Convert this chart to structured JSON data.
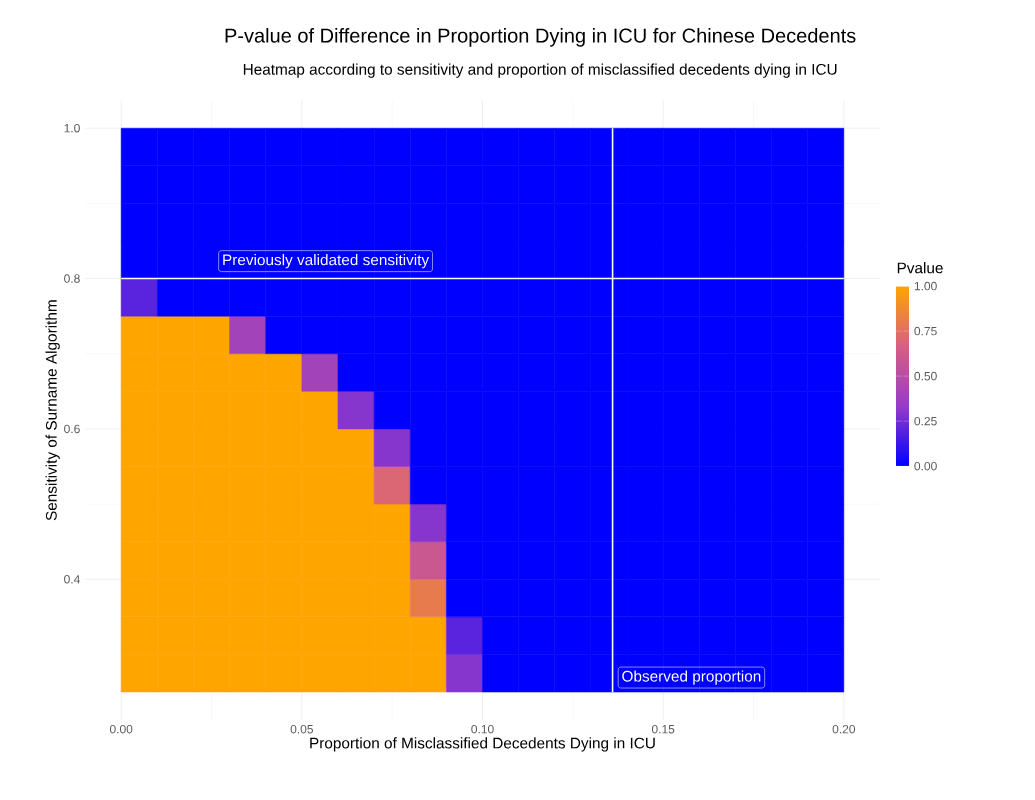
{
  "chart_data": {
    "type": "heatmap",
    "title": "P-value of Difference in Proportion Dying in ICU for Chinese Decedents",
    "subtitle": "Heatmap according to sensitivity and proportion of misclassified decedents dying in ICU",
    "xlabel": "Proportion of Misclassified Decedents Dying in ICU",
    "ylabel": "Sensitivity of Surname Algorithm",
    "clabel": "Pvalue",
    "x": [
      0.005,
      0.015,
      0.025,
      0.035,
      0.045,
      0.055,
      0.065,
      0.075,
      0.085,
      0.095,
      0.105,
      0.115,
      0.125,
      0.135,
      0.145,
      0.155,
      0.165,
      0.175,
      0.185,
      0.195
    ],
    "y": [
      0.975,
      0.925,
      0.875,
      0.825,
      0.775,
      0.725,
      0.675,
      0.625,
      0.575,
      0.525,
      0.475,
      0.425,
      0.375,
      0.325,
      0.275
    ],
    "cells": [
      [
        0,
        0,
        0,
        0,
        0,
        0,
        0,
        0,
        0,
        0,
        0,
        0,
        0,
        0,
        0,
        0,
        0,
        0,
        0,
        0
      ],
      [
        0,
        0,
        0,
        0,
        0,
        0,
        0,
        0,
        0,
        0,
        0,
        0,
        0,
        0,
        0,
        0,
        0,
        0,
        0,
        0
      ],
      [
        0,
        0,
        0,
        0,
        0,
        0,
        0,
        0,
        0,
        0,
        0,
        0,
        0,
        0,
        0,
        0,
        0,
        0,
        0,
        0
      ],
      [
        0,
        0,
        0,
        0,
        0,
        0,
        0,
        0,
        0,
        0,
        0,
        0,
        0,
        0,
        0,
        0,
        0,
        0,
        0,
        0
      ],
      [
        0.2,
        0,
        0,
        0,
        0,
        0,
        0,
        0,
        0,
        0,
        0,
        0,
        0,
        0,
        0,
        0,
        0,
        0,
        0,
        0
      ],
      [
        1,
        1,
        1,
        0.4,
        0,
        0,
        0,
        0,
        0,
        0,
        0,
        0,
        0,
        0,
        0,
        0,
        0,
        0,
        0,
        0
      ],
      [
        1,
        1,
        1,
        1,
        1,
        0.4,
        0,
        0,
        0,
        0,
        0,
        0,
        0,
        0,
        0,
        0,
        0,
        0,
        0,
        0
      ],
      [
        1,
        1,
        1,
        1,
        1,
        1,
        0.3,
        0,
        0,
        0,
        0,
        0,
        0,
        0,
        0,
        0,
        0,
        0,
        0,
        0
      ],
      [
        1,
        1,
        1,
        1,
        1,
        1,
        1,
        0.3,
        0,
        0,
        0,
        0,
        0,
        0,
        0,
        0,
        0,
        0,
        0,
        0
      ],
      [
        1,
        1,
        1,
        1,
        1,
        1,
        1,
        0.7,
        0,
        0,
        0,
        0,
        0,
        0,
        0,
        0,
        0,
        0,
        0,
        0
      ],
      [
        1,
        1,
        1,
        1,
        1,
        1,
        1,
        1,
        0.3,
        0,
        0,
        0,
        0,
        0,
        0,
        0,
        0,
        0,
        0,
        0
      ],
      [
        1,
        1,
        1,
        1,
        1,
        1,
        1,
        1,
        0.6,
        0,
        0,
        0,
        0,
        0,
        0,
        0,
        0,
        0,
        0,
        0
      ],
      [
        1,
        1,
        1,
        1,
        1,
        1,
        1,
        1,
        0.8,
        0,
        0,
        0,
        0,
        0,
        0,
        0,
        0,
        0,
        0,
        0
      ],
      [
        1,
        1,
        1,
        1,
        1,
        1,
        1,
        1,
        1,
        0.2,
        0,
        0,
        0,
        0,
        0,
        0,
        0,
        0,
        0,
        0
      ],
      [
        1,
        1,
        1,
        1,
        1,
        1,
        1,
        1,
        1,
        0.3,
        0,
        0,
        0,
        0,
        0,
        0,
        0,
        0,
        0,
        0
      ]
    ],
    "xlim": [
      -0.01,
      0.21
    ],
    "xticks": [
      {
        "value": 0,
        "label": "0.00"
      },
      {
        "value": 0.05,
        "label": "0.05"
      },
      {
        "value": 0.1,
        "label": "0.10"
      },
      {
        "value": 0.15,
        "label": "0.15"
      },
      {
        "value": 0.2,
        "label": "0.20"
      }
    ],
    "ylim": [
      0.2125,
      1.0375
    ],
    "yticks": [
      0.4,
      0.6,
      0.8,
      {
        "value": 1,
        "label": "1.0"
      }
    ],
    "clim": [
      0,
      1
    ],
    "cticks": [
      {
        "value": 0,
        "label": "0.00"
      },
      {
        "value": 0.25,
        "label": "0.25"
      },
      {
        "value": 0.5,
        "label": "0.50"
      },
      {
        "value": 0.75,
        "label": "0.75"
      },
      {
        "value": 1,
        "label": "1.00"
      }
    ],
    "grid": true,
    "ref_lines": [
      {
        "axis": "y",
        "value": 0.8,
        "label": "Previously validated sensitivity",
        "color": "#ffffff"
      },
      {
        "axis": "x",
        "value": 0.136,
        "label": "Observed proportion",
        "color": "#ffffff"
      }
    ]
  }
}
